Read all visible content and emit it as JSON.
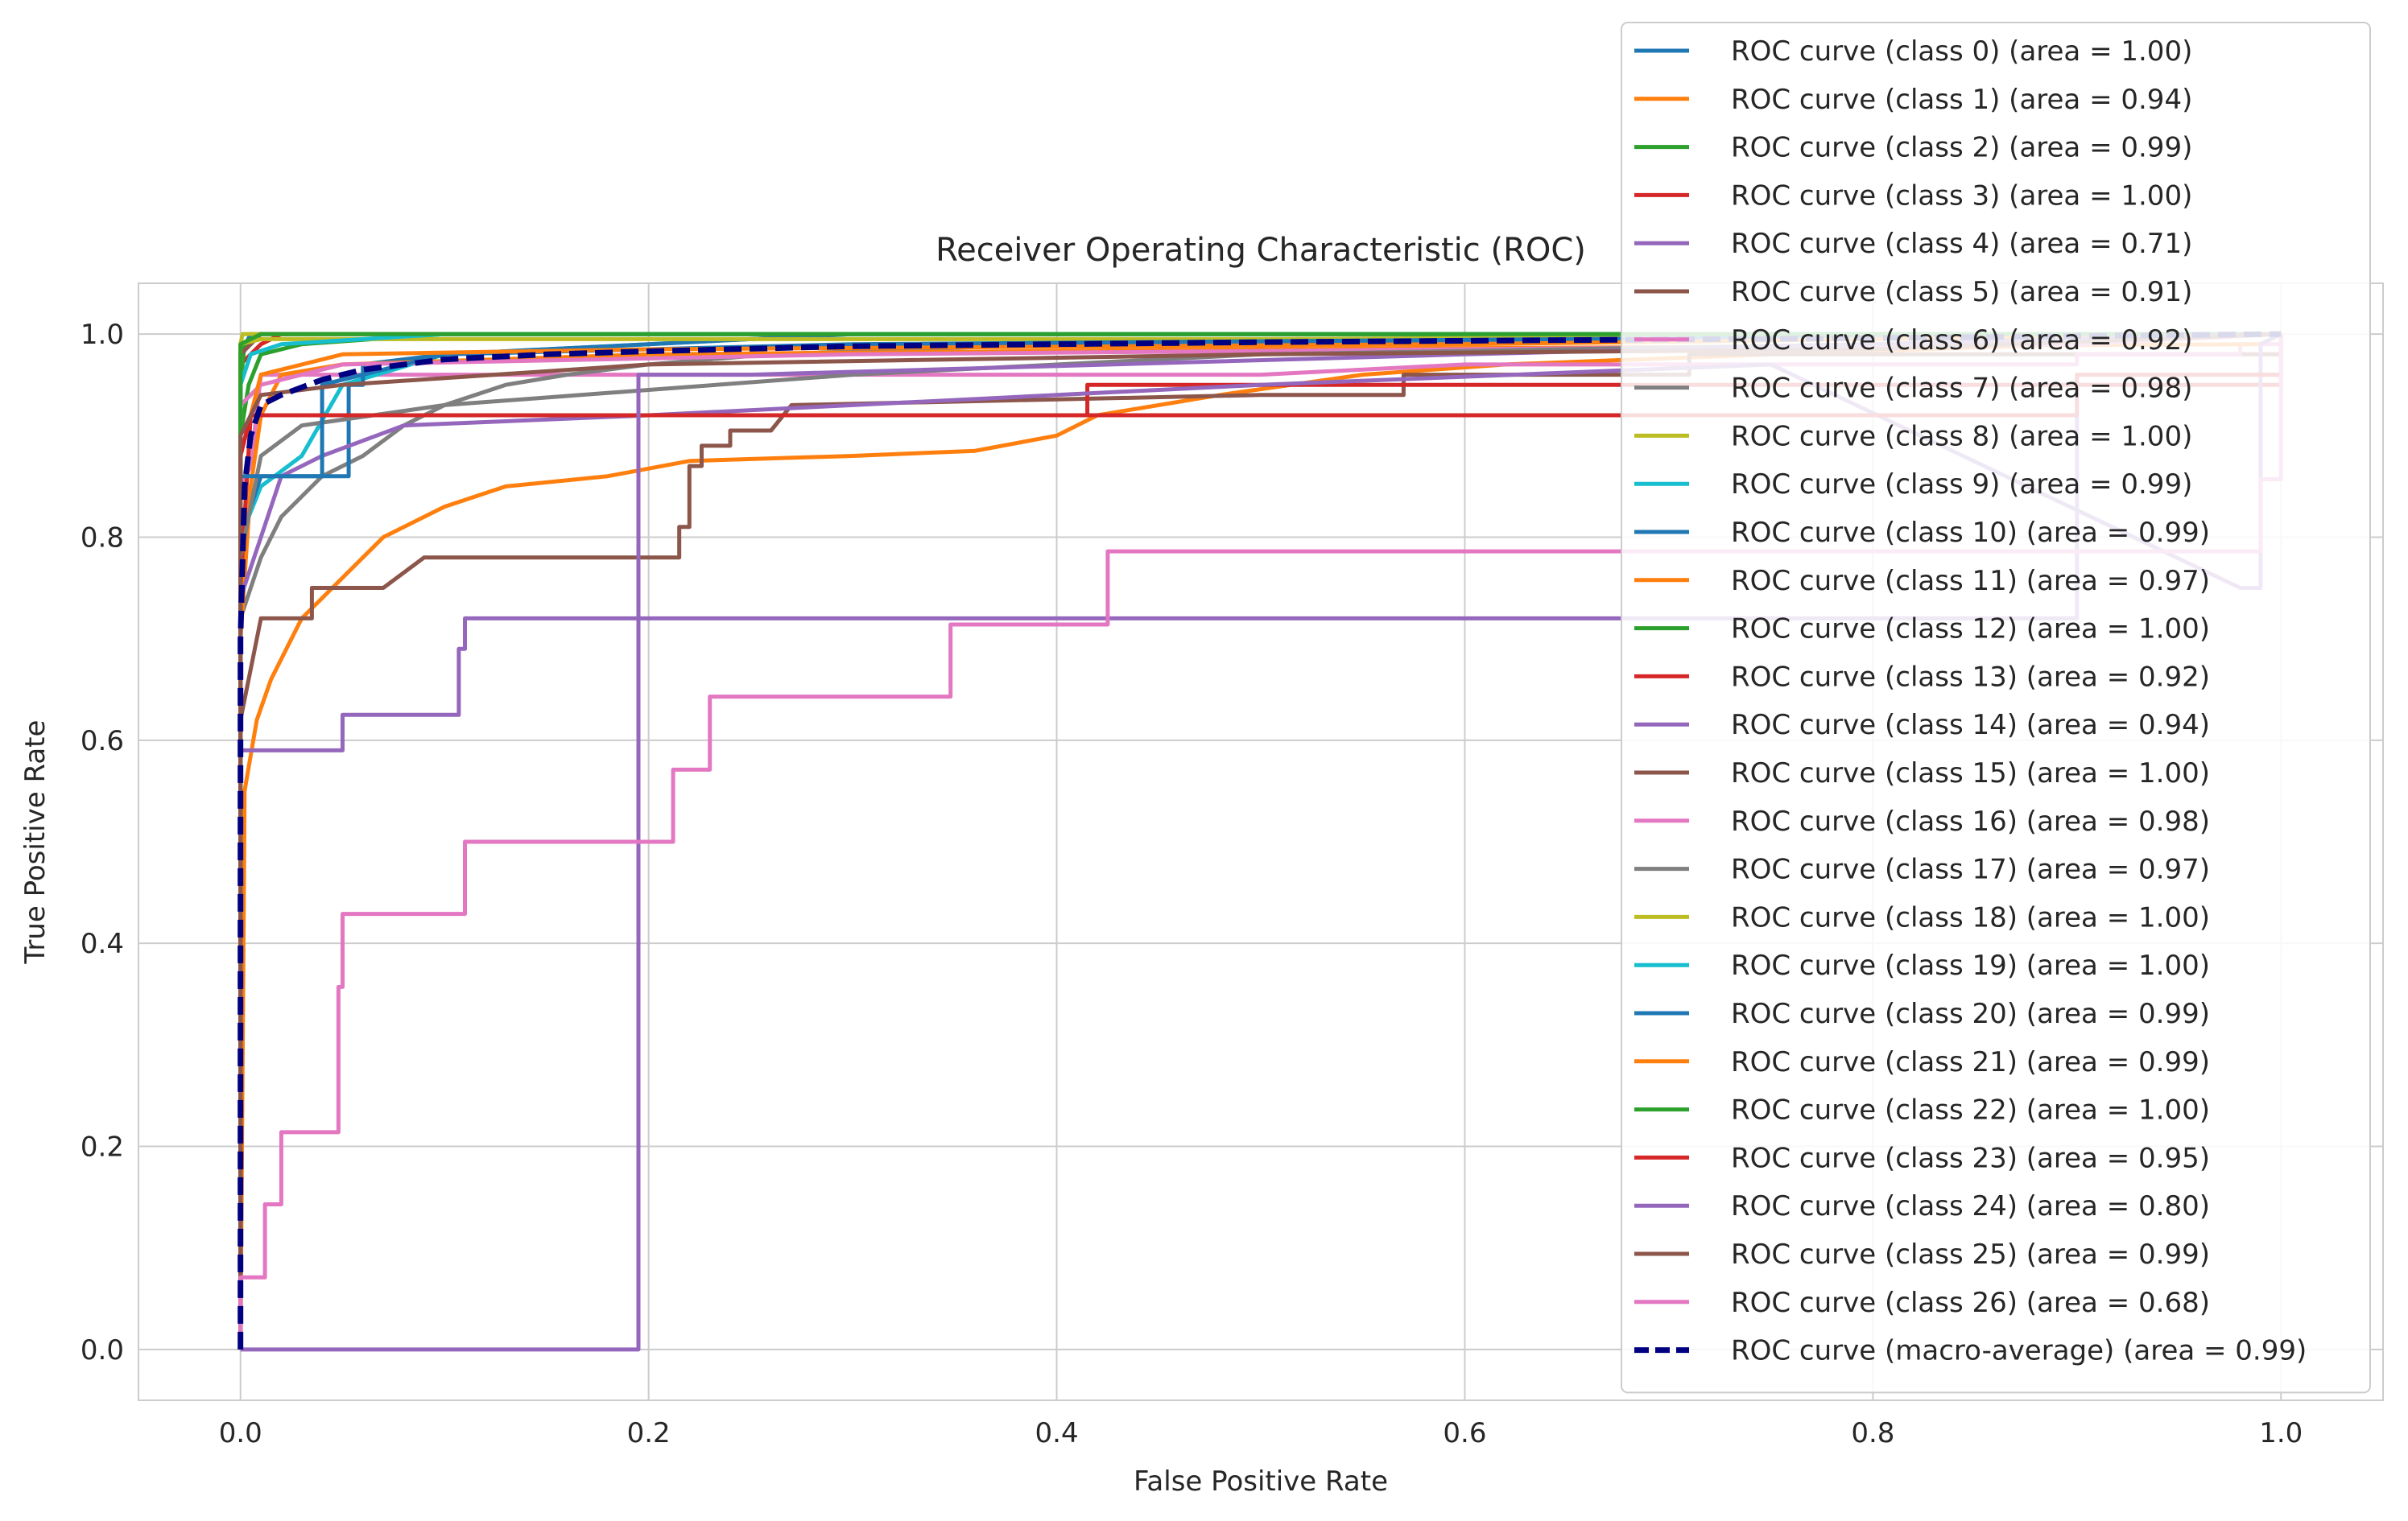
{
  "chart_data": {
    "type": "line",
    "title": "Receiver Operating Characteristic (ROC)",
    "xlabel": "False Positive Rate",
    "ylabel": "True Positive Rate",
    "xlim": [
      -0.05,
      1.05
    ],
    "ylim": [
      -0.05,
      1.05
    ],
    "xticks": [
      "0.0",
      "0.2",
      "0.4",
      "0.6",
      "0.8",
      "1.0"
    ],
    "yticks": [
      "0.0",
      "0.2",
      "0.4",
      "0.6",
      "0.8",
      "1.0"
    ],
    "grid": true,
    "legend_position": "upper-right",
    "series": [
      {
        "name": "ROC curve (class 0) (area = 1.00)",
        "color": "#1f77b4",
        "points": [
          [
            0,
            0
          ],
          [
            0,
            0.98
          ],
          [
            0.005,
            1.0
          ],
          [
            1,
            1
          ]
        ]
      },
      {
        "name": "ROC curve (class 1) (area = 0.94)",
        "color": "#ff7f0e",
        "points": [
          [
            0,
            0
          ],
          [
            0.002,
            0.55
          ],
          [
            0.008,
            0.62
          ],
          [
            0.015,
            0.66
          ],
          [
            0.03,
            0.72
          ],
          [
            0.05,
            0.76
          ],
          [
            0.07,
            0.8
          ],
          [
            0.1,
            0.83
          ],
          [
            0.13,
            0.85
          ],
          [
            0.18,
            0.86
          ],
          [
            0.22,
            0.875
          ],
          [
            0.3,
            0.88
          ],
          [
            0.36,
            0.885
          ],
          [
            0.4,
            0.9
          ],
          [
            0.42,
            0.92
          ],
          [
            0.48,
            0.94
          ],
          [
            0.55,
            0.96
          ],
          [
            0.62,
            0.97
          ],
          [
            0.75,
            0.98
          ],
          [
            0.9,
            0.99
          ],
          [
            1,
            1
          ]
        ]
      },
      {
        "name": "ROC curve (class 2) (area = 0.99)",
        "color": "#2ca02c",
        "points": [
          [
            0,
            0
          ],
          [
            0,
            0.9
          ],
          [
            0.004,
            0.95
          ],
          [
            0.01,
            0.98
          ],
          [
            0.03,
            0.99
          ],
          [
            0.1,
            1.0
          ],
          [
            1,
            1
          ]
        ]
      },
      {
        "name": "ROC curve (class 3) (area = 1.00)",
        "color": "#d62728",
        "points": [
          [
            0,
            0
          ],
          [
            0,
            0.97
          ],
          [
            0.01,
            0.99
          ],
          [
            0.02,
            1.0
          ],
          [
            1,
            1
          ]
        ]
      },
      {
        "name": "ROC curve (class 4) (area = 0.71)",
        "color": "#9467bd",
        "points": [
          [
            0,
            0
          ],
          [
            0,
            0.59
          ],
          [
            0.05,
            0.59
          ],
          [
            0.05,
            0.625
          ],
          [
            0.107,
            0.625
          ],
          [
            0.107,
            0.69
          ],
          [
            0.11,
            0.69
          ],
          [
            0.11,
            0.72
          ],
          [
            0.9,
            0.72
          ],
          [
            0.9,
            0.96
          ],
          [
            1,
            0.96
          ],
          [
            1,
            1
          ]
        ]
      },
      {
        "name": "ROC curve (class 5) (area = 0.91)",
        "color": "#8c564b",
        "points": [
          [
            0,
            0
          ],
          [
            0,
            0.62
          ],
          [
            0.01,
            0.72
          ],
          [
            0.035,
            0.72
          ],
          [
            0.035,
            0.75
          ],
          [
            0.07,
            0.75
          ],
          [
            0.09,
            0.78
          ],
          [
            0.215,
            0.78
          ],
          [
            0.215,
            0.81
          ],
          [
            0.22,
            0.81
          ],
          [
            0.22,
            0.87
          ],
          [
            0.226,
            0.87
          ],
          [
            0.226,
            0.89
          ],
          [
            0.24,
            0.89
          ],
          [
            0.24,
            0.905
          ],
          [
            0.26,
            0.905
          ],
          [
            0.27,
            0.93
          ],
          [
            0.5,
            0.94
          ],
          [
            0.57,
            0.94
          ],
          [
            0.57,
            0.96
          ],
          [
            0.71,
            0.96
          ],
          [
            0.71,
            0.98
          ],
          [
            1,
            0.98
          ],
          [
            1,
            1
          ]
        ]
      },
      {
        "name": "ROC curve (class 6) (area = 0.92)",
        "color": "#e377c2",
        "points": [
          [
            0,
            0
          ],
          [
            0,
            0.85
          ],
          [
            0.005,
            0.87
          ],
          [
            0.01,
            0.96
          ],
          [
            0.5,
            0.96
          ],
          [
            0.6,
            0.97
          ],
          [
            0.9,
            0.97
          ],
          [
            0.9,
            0.98
          ],
          [
            0.98,
            0.98
          ],
          [
            0.98,
            0.99
          ],
          [
            1,
            0.99
          ],
          [
            1,
            1
          ]
        ]
      },
      {
        "name": "ROC curve (class 7) (area = 0.98)",
        "color": "#7f7f7f",
        "points": [
          [
            0,
            0
          ],
          [
            0,
            0.72
          ],
          [
            0.01,
            0.78
          ],
          [
            0.02,
            0.82
          ],
          [
            0.04,
            0.86
          ],
          [
            0.06,
            0.88
          ],
          [
            0.08,
            0.91
          ],
          [
            0.1,
            0.93
          ],
          [
            0.13,
            0.95
          ],
          [
            0.16,
            0.96
          ],
          [
            0.2,
            0.97
          ],
          [
            0.26,
            0.98
          ],
          [
            0.4,
            0.99
          ],
          [
            1,
            1
          ]
        ]
      },
      {
        "name": "ROC curve (class 8) (area = 1.00)",
        "color": "#bcbd22",
        "points": [
          [
            0,
            0
          ],
          [
            0,
            0.99
          ],
          [
            0.001,
            1.0
          ],
          [
            1,
            1
          ]
        ]
      },
      {
        "name": "ROC curve (class 9) (area = 0.99)",
        "color": "#17becf",
        "points": [
          [
            0,
            0
          ],
          [
            0,
            0.8
          ],
          [
            0.01,
            0.85
          ],
          [
            0.03,
            0.88
          ],
          [
            0.05,
            0.95
          ],
          [
            0.1,
            0.98
          ],
          [
            0.2,
            0.99
          ],
          [
            0.3,
            1.0
          ],
          [
            1,
            1
          ]
        ]
      },
      {
        "name": "ROC curve (class 10) (area = 0.99)",
        "color": "#1f77b4",
        "points": [
          [
            0,
            0
          ],
          [
            0,
            0.8
          ],
          [
            0.01,
            0.86
          ],
          [
            0.053,
            0.86
          ],
          [
            0.053,
            0.95
          ],
          [
            0.06,
            0.95
          ],
          [
            0.06,
            0.97
          ],
          [
            0.1,
            0.98
          ],
          [
            0.2,
            0.99
          ],
          [
            0.3,
            1.0
          ],
          [
            1,
            1
          ]
        ]
      },
      {
        "name": "ROC curve (class 11) (area = 0.97)",
        "color": "#ff7f0e",
        "points": [
          [
            0,
            0
          ],
          [
            0,
            0.7
          ],
          [
            0.005,
            0.85
          ],
          [
            0.01,
            0.92
          ],
          [
            0.02,
            0.96
          ],
          [
            0.05,
            0.97
          ],
          [
            0.2,
            0.98
          ],
          [
            0.5,
            0.985
          ],
          [
            0.99,
            0.99
          ],
          [
            1,
            1
          ]
        ]
      },
      {
        "name": "ROC curve (class 12) (area = 1.00)",
        "color": "#2ca02c",
        "points": [
          [
            0,
            0
          ],
          [
            0,
            0.95
          ],
          [
            0.002,
            0.99
          ],
          [
            0.01,
            1.0
          ],
          [
            1,
            1
          ]
        ]
      },
      {
        "name": "ROC curve (class 13) (area = 0.92)",
        "color": "#d62728",
        "points": [
          [
            0,
            0
          ],
          [
            0,
            0.75
          ],
          [
            0.005,
            0.92
          ],
          [
            0.415,
            0.92
          ],
          [
            0.415,
            0.95
          ],
          [
            1,
            0.95
          ],
          [
            1,
            1
          ]
        ]
      },
      {
        "name": "ROC curve (class 14) (area = 0.94)",
        "color": "#9467bd",
        "points": [
          [
            0,
            0
          ],
          [
            0,
            0.74
          ],
          [
            0.01,
            0.8
          ],
          [
            0.02,
            0.86
          ],
          [
            0.04,
            0.88
          ],
          [
            0.08,
            0.91
          ],
          [
            0.2,
            0.92
          ],
          [
            0.3,
            0.93
          ],
          [
            0.5,
            0.95
          ],
          [
            0.75,
            0.97
          ],
          [
            0.98,
            0.75
          ],
          [
            0.99,
            0.75
          ],
          [
            0.99,
            0.99
          ],
          [
            1,
            1
          ]
        ]
      },
      {
        "name": "ROC curve (class 15) (area = 1.00)",
        "color": "#8c564b",
        "points": [
          [
            0,
            0
          ],
          [
            0,
            0.98
          ],
          [
            0.01,
            1.0
          ],
          [
            1,
            1
          ]
        ]
      },
      {
        "name": "ROC curve (class 16) (area = 0.98)",
        "color": "#e377c2",
        "points": [
          [
            0,
            0
          ],
          [
            0,
            0.93
          ],
          [
            0.01,
            0.95
          ],
          [
            0.05,
            0.97
          ],
          [
            0.3,
            0.98
          ],
          [
            0.9,
            0.99
          ],
          [
            1,
            1
          ]
        ]
      },
      {
        "name": "ROC curve (class 17) (area = 0.97)",
        "color": "#7f7f7f",
        "points": [
          [
            0,
            0
          ],
          [
            0,
            0.78
          ],
          [
            0.01,
            0.88
          ],
          [
            0.03,
            0.91
          ],
          [
            0.1,
            0.93
          ],
          [
            0.3,
            0.96
          ],
          [
            0.5,
            0.98
          ],
          [
            0.8,
            0.99
          ],
          [
            1,
            1
          ]
        ]
      },
      {
        "name": "ROC curve (class 18) (area = 1.00)",
        "color": "#bcbd22",
        "points": [
          [
            0,
            0
          ],
          [
            0,
            0.99
          ],
          [
            0.01,
            0.995
          ],
          [
            0.5,
            0.995
          ],
          [
            1,
            1
          ]
        ]
      },
      {
        "name": "ROC curve (class 19) (area = 1.00)",
        "color": "#17becf",
        "points": [
          [
            0,
            0
          ],
          [
            0,
            0.95
          ],
          [
            0.005,
            0.98
          ],
          [
            0.02,
            0.99
          ],
          [
            0.1,
            1.0
          ],
          [
            1,
            1
          ]
        ]
      },
      {
        "name": "ROC curve (class 20) (area = 0.99)",
        "color": "#1f77b4",
        "points": [
          [
            0,
            0
          ],
          [
            0,
            0.86
          ],
          [
            0.04,
            0.86
          ],
          [
            0.04,
            0.95
          ],
          [
            0.06,
            0.96
          ],
          [
            0.1,
            0.98
          ],
          [
            0.3,
            0.99
          ],
          [
            1,
            1
          ]
        ]
      },
      {
        "name": "ROC curve (class 21) (area = 0.99)",
        "color": "#ff7f0e",
        "points": [
          [
            0,
            0
          ],
          [
            0,
            0.88
          ],
          [
            0.01,
            0.96
          ],
          [
            0.05,
            0.98
          ],
          [
            0.2,
            0.985
          ],
          [
            0.6,
            0.99
          ],
          [
            1,
            1
          ]
        ]
      },
      {
        "name": "ROC curve (class 22) (area = 1.00)",
        "color": "#2ca02c",
        "points": [
          [
            0,
            0
          ],
          [
            0,
            0.99
          ],
          [
            0.01,
            1.0
          ],
          [
            1,
            1
          ]
        ]
      },
      {
        "name": "ROC curve (class 23) (area = 0.95)",
        "color": "#d62728",
        "points": [
          [
            0,
            0
          ],
          [
            0,
            0.88
          ],
          [
            0.005,
            0.92
          ],
          [
            0.9,
            0.92
          ],
          [
            0.9,
            0.96
          ],
          [
            1,
            0.96
          ],
          [
            1,
            1
          ]
        ]
      },
      {
        "name": "ROC curve (class 24) (area = 0.80)",
        "color": "#9467bd",
        "points": [
          [
            0,
            0
          ],
          [
            0.195,
            0
          ],
          [
            0.195,
            0.96
          ],
          [
            0.25,
            0.96
          ],
          [
            0.6,
            0.98
          ],
          [
            1,
            1
          ]
        ]
      },
      {
        "name": "ROC curve (class 25) (area = 0.99)",
        "color": "#8c564b",
        "points": [
          [
            0,
            0
          ],
          [
            0,
            0.9
          ],
          [
            0.01,
            0.94
          ],
          [
            0.05,
            0.95
          ],
          [
            0.2,
            0.97
          ],
          [
            0.5,
            0.98
          ],
          [
            0.8,
            0.985
          ],
          [
            1,
            1
          ]
        ]
      },
      {
        "name": "ROC curve (class 26) (area = 0.68)",
        "color": "#e377c2",
        "points": [
          [
            0,
            0
          ],
          [
            0,
            0.071
          ],
          [
            0.012,
            0.071
          ],
          [
            0.012,
            0.143
          ],
          [
            0.02,
            0.143
          ],
          [
            0.02,
            0.214
          ],
          [
            0.048,
            0.214
          ],
          [
            0.048,
            0.357
          ],
          [
            0.05,
            0.357
          ],
          [
            0.05,
            0.429
          ],
          [
            0.11,
            0.429
          ],
          [
            0.11,
            0.5
          ],
          [
            0.212,
            0.5
          ],
          [
            0.212,
            0.571
          ],
          [
            0.23,
            0.571
          ],
          [
            0.23,
            0.643
          ],
          [
            0.348,
            0.643
          ],
          [
            0.348,
            0.714
          ],
          [
            0.425,
            0.714
          ],
          [
            0.425,
            0.786
          ],
          [
            0.99,
            0.786
          ],
          [
            0.99,
            0.857
          ],
          [
            1,
            0.857
          ],
          [
            1,
            1
          ]
        ]
      },
      {
        "name": "ROC curve (macro-average) (area = 0.99)",
        "color": "#000080",
        "dashed": true,
        "points": [
          [
            0,
            0
          ],
          [
            0,
            0.7
          ],
          [
            0.002,
            0.85
          ],
          [
            0.005,
            0.9
          ],
          [
            0.01,
            0.93
          ],
          [
            0.02,
            0.94
          ],
          [
            0.04,
            0.955
          ],
          [
            0.06,
            0.965
          ],
          [
            0.1,
            0.975
          ],
          [
            0.15,
            0.98
          ],
          [
            0.2,
            0.983
          ],
          [
            0.3,
            0.988
          ],
          [
            0.5,
            0.992
          ],
          [
            0.8,
            0.996
          ],
          [
            1,
            1
          ]
        ]
      }
    ]
  }
}
